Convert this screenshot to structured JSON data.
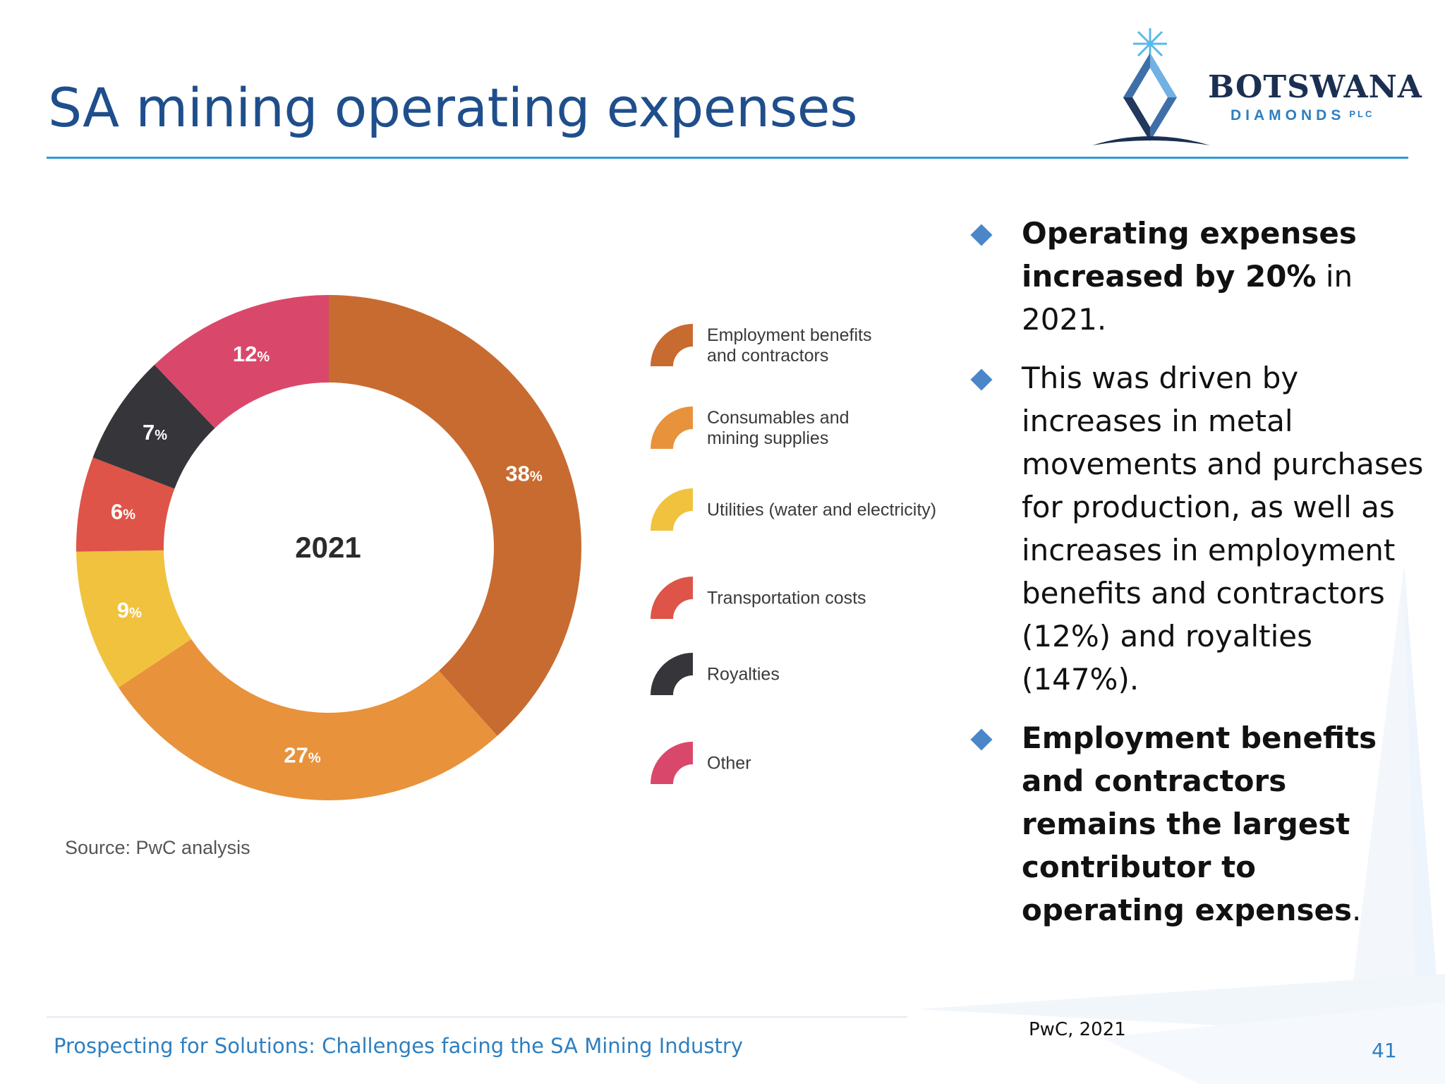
{
  "slide": {
    "title": "SA mining operating expenses",
    "footer_text": "Prospecting for Solutions: Challenges facing the SA Mining Industry",
    "footer_citation": "PwC, 2021",
    "page_number": "41",
    "title_color": "#1f4e8c",
    "accent_color": "#2e9bd6"
  },
  "logo": {
    "name": "BOTSWANA",
    "sub": "DIAMONDS",
    "plc": "PLC"
  },
  "chart_data": {
    "type": "pie",
    "subtype": "donut",
    "center_label": "2021",
    "unit": "%",
    "slices": [
      {
        "name": "Employment benefits\nand contractors",
        "value": 38,
        "color": "#c86b30"
      },
      {
        "name": "Consumables and\nmining supplies",
        "value": 27,
        "color": "#e8923b"
      },
      {
        "name": "Utilities (water and electricity)",
        "value": 9,
        "color": "#f0c23e"
      },
      {
        "name": "Transportation costs",
        "value": 6,
        "color": "#de5448"
      },
      {
        "name": "Royalties",
        "value": 7,
        "color": "#36363a"
      },
      {
        "name": "Other",
        "value": 12,
        "color": "#d9486a"
      }
    ],
    "source": "Source: PwC analysis"
  },
  "bullets": [
    {
      "bold": "Operating expenses increased by 20%",
      "text": " in 2021."
    },
    {
      "bold": "",
      "text": "This was driven by increases in metal movements and purchases for production, as well as increases in employment benefits and contractors (12%) and royalties (147%)."
    },
    {
      "bold": "Employment benefits and contractors remains the largest contributor to operating expenses",
      "text": "."
    }
  ]
}
